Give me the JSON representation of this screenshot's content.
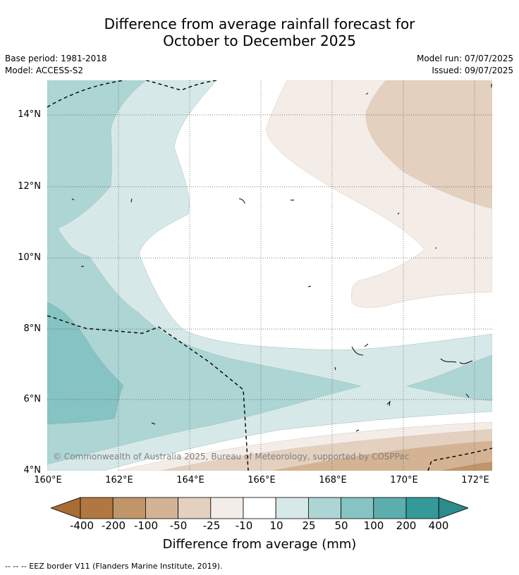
{
  "title": {
    "line1": "Difference from average rainfall forecast for",
    "line2": "October to December 2025"
  },
  "meta": {
    "base_period": "Base period: 1981-2018",
    "model": "Model: ACCESS-S2",
    "model_run": "Model run: 07/07/2025",
    "issued": "Issued: 09/07/2025"
  },
  "map": {
    "copyright": "© Commonwealth of Australia 2025, Bureau of Meteorology, supported by COSPPac",
    "lat_labels": [
      "14°N",
      "12°N",
      "10°N",
      "8°N",
      "6°N",
      "4°N"
    ],
    "lon_labels": [
      "160°E",
      "162°E",
      "164°E",
      "166°E",
      "168°E",
      "170°E",
      "172°E"
    ]
  },
  "colorbar": {
    "title": "Difference from average (mm)",
    "tick_labels": [
      "-400",
      "-200",
      "-100",
      "-50",
      "-25",
      "-10",
      "10",
      "25",
      "50",
      "100",
      "200",
      "400"
    ],
    "colors": [
      "#a86c35",
      "#b07840",
      "#c09569",
      "#d4b394",
      "#e3d0bf",
      "#f4ece7",
      "#ffffff",
      "#d6e9e8",
      "#acd5d4",
      "#86c3c3",
      "#5caeae",
      "#359999",
      "#2d8b8b"
    ]
  },
  "footnote": "--  --  -- EEZ border V11 (Flanders Marine Institute, 2019)."
}
